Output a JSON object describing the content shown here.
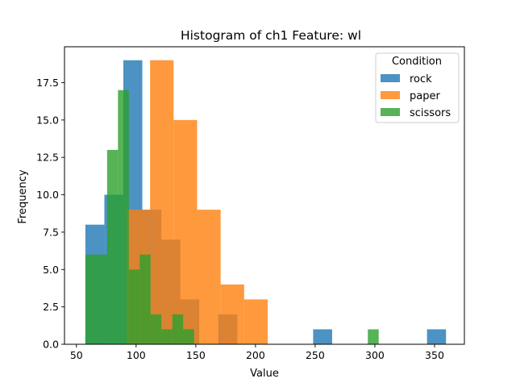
{
  "chart_data": {
    "type": "histogram",
    "title": "Histogram of ch1 Feature: wl",
    "xlabel": "Value",
    "ylabel": "Frequency",
    "xlim": [
      40,
      375
    ],
    "ylim": [
      0,
      19.9
    ],
    "xticks": [
      50,
      100,
      150,
      200,
      250,
      300,
      350
    ],
    "yticks": [
      0.0,
      2.5,
      5.0,
      7.5,
      10.0,
      12.5,
      15.0,
      17.5
    ],
    "xtick_labels": [
      "50",
      "100",
      "150",
      "200",
      "250",
      "300",
      "350"
    ],
    "ytick_labels": [
      "0.0",
      "2.5",
      "5.0",
      "7.5",
      "10.0",
      "12.5",
      "15.0",
      "17.5"
    ],
    "grid": false,
    "legend": {
      "title": "Condition",
      "position": "top-right"
    },
    "alpha": 0.8,
    "series": [
      {
        "name": "rock",
        "color": "#1f77b4",
        "bin_edges": [
          57.5,
          73.4,
          89.3,
          105.2,
          121.1,
          137.0,
          152.9,
          168.8,
          184.7,
          200.6,
          216.5,
          232.4,
          248.3,
          264.2,
          280.1,
          296.0,
          311.9,
          327.8,
          343.7,
          359.6
        ],
        "counts": [
          8,
          10,
          19,
          9,
          7,
          3,
          0,
          2,
          0,
          0,
          0,
          0,
          1,
          0,
          0,
          0,
          0,
          0,
          1
        ]
      },
      {
        "name": "paper",
        "color": "#ff7f0e",
        "bin_edges": [
          92,
          111.7,
          131.4,
          151.1,
          170.8,
          190.5,
          210.2
        ],
        "counts": [
          9,
          19,
          15,
          9,
          4,
          3
        ]
      },
      {
        "name": "scissors",
        "color": "#2ca02c",
        "bin_edges": [
          57.5,
          66.6,
          75.7,
          84.8,
          93.9,
          103.0,
          112.1,
          121.2,
          130.3,
          139.4,
          148.5,
          157.6,
          166.7,
          175.8,
          184.9,
          194.0,
          203.1,
          212.2,
          221.3,
          230.4,
          239.5,
          248.6,
          257.7,
          266.8,
          275.9,
          285.0,
          294.1,
          303.2
        ],
        "counts": [
          6,
          6,
          13,
          17,
          5,
          6,
          2,
          1,
          2,
          1,
          0,
          0,
          0,
          0,
          0,
          0,
          0,
          0,
          0,
          0,
          0,
          0,
          0,
          0,
          0,
          0,
          1
        ]
      }
    ]
  }
}
